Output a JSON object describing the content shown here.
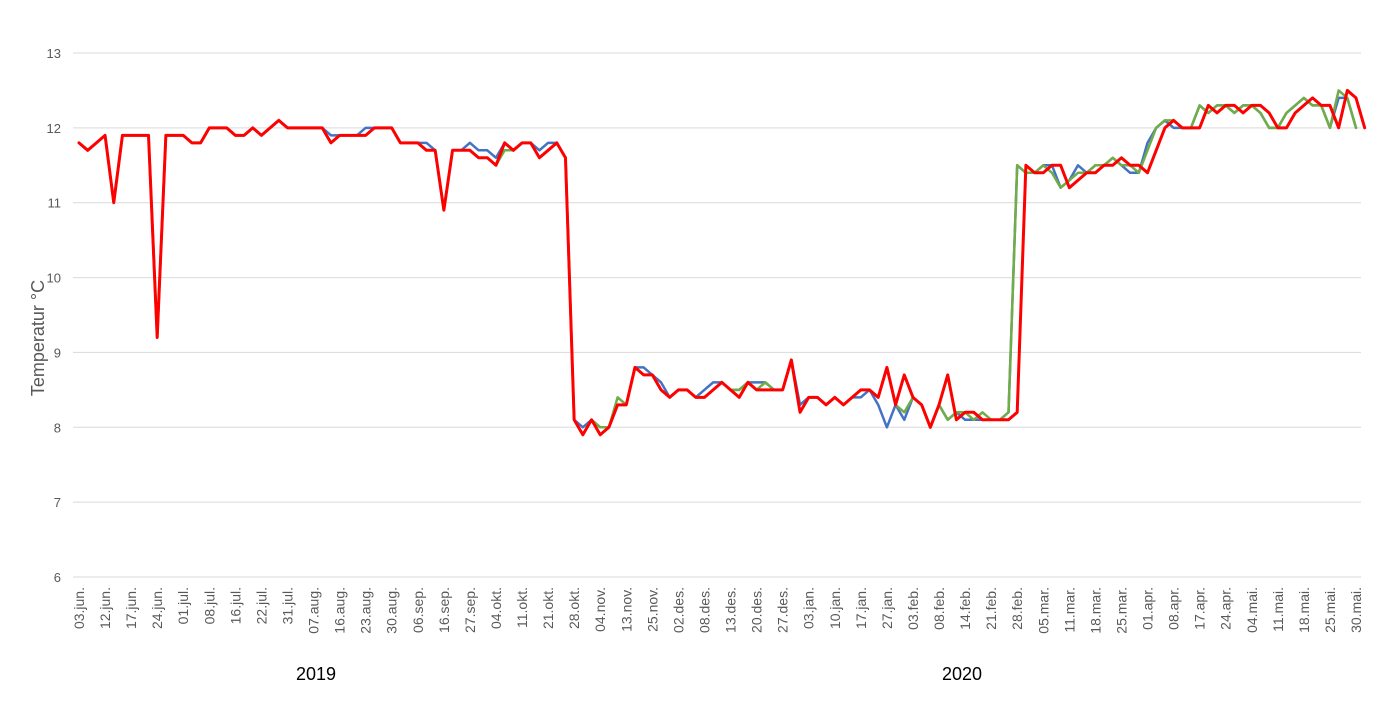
{
  "chart_data": {
    "type": "line",
    "ylabel": "Temperatur °C",
    "ylim": [
      6,
      13
    ],
    "yticks": [
      6,
      7,
      8,
      9,
      10,
      11,
      12,
      13
    ],
    "grid": "horizontal",
    "legend": "none",
    "x_tick_labels": [
      "03.jun.",
      "12.jun.",
      "17.jun.",
      "24.jun.",
      "01.jul.",
      "08.jul.",
      "16.jul.",
      "22.jul.",
      "31.jul.",
      "07.aug.",
      "16.aug.",
      "23.aug.",
      "30.aug.",
      "06.sep.",
      "16.sep.",
      "27.sep.",
      "04.okt.",
      "11.okt.",
      "21.okt.",
      "28.okt.",
      "04.nov.",
      "13.nov.",
      "25.nov.",
      "02.des.",
      "08.des.",
      "13.des.",
      "20.des.",
      "27.des.",
      "03.jan.",
      "10.jan.",
      "17.jan.",
      "27.jan.",
      "03.feb.",
      "08.feb.",
      "14.feb.",
      "21.feb.",
      "28.feb.",
      "05.mar.",
      "11.mar.",
      "18.mar.",
      "25.mar.",
      "01.apr.",
      "08.apr.",
      "17.apr.",
      "24.apr.",
      "04.mai.",
      "11.mai.",
      "18.mai.",
      "25.mai.",
      "30.mai."
    ],
    "tick_every": 3,
    "year_labels": [
      "2019",
      "2020"
    ],
    "series": [
      {
        "color": "#4472C4",
        "values": [
          11.8,
          11.7,
          11.8,
          11.9,
          11.0,
          11.9,
          11.9,
          11.9,
          11.9,
          9.2,
          11.9,
          11.9,
          11.9,
          11.8,
          11.8,
          12.0,
          12.0,
          12.0,
          11.9,
          11.9,
          12.0,
          11.9,
          12.0,
          12.1,
          12.0,
          12.0,
          12.0,
          12.0,
          12.0,
          11.9,
          11.9,
          11.9,
          11.9,
          12.0,
          12.0,
          12.0,
          12.0,
          11.8,
          11.8,
          11.8,
          11.8,
          11.7,
          10.9,
          11.7,
          11.7,
          11.8,
          11.7,
          11.7,
          11.6,
          11.8,
          11.7,
          11.8,
          11.8,
          11.7,
          11.8,
          11.8,
          11.6,
          8.1,
          8.0,
          8.1,
          8.0,
          8.0,
          8.3,
          8.3,
          8.8,
          8.8,
          8.7,
          8.6,
          8.4,
          8.5,
          8.5,
          8.4,
          8.5,
          8.6,
          8.6,
          8.5,
          8.5,
          8.6,
          8.6,
          8.6,
          8.5,
          8.5,
          8.9,
          8.3,
          8.4,
          8.4,
          8.3,
          8.4,
          8.3,
          8.4,
          8.4,
          8.5,
          8.3,
          8.0,
          8.3,
          8.1,
          8.4,
          8.3,
          8.0,
          8.3,
          8.1,
          8.2,
          8.1,
          8.1,
          8.1,
          8.1,
          8.1,
          8.2,
          11.5,
          11.4,
          11.4,
          11.5,
          11.5,
          11.2,
          11.3,
          11.5,
          11.4,
          11.5,
          11.5,
          11.6,
          11.5,
          11.4,
          11.4,
          11.8,
          12.0,
          12.1,
          12.0,
          12.0,
          12.0,
          12.3,
          12.2,
          12.3,
          12.3,
          12.2,
          12.3,
          12.3,
          12.2,
          12.0,
          12.0,
          12.2,
          12.3,
          12.4,
          12.3,
          12.3,
          12.0,
          12.4,
          12.4,
          12.0
        ]
      },
      {
        "color": "#70AD47",
        "values": [
          11.8,
          11.7,
          11.8,
          11.9,
          11.0,
          11.9,
          11.9,
          11.9,
          11.9,
          9.2,
          11.9,
          11.9,
          11.9,
          11.8,
          11.8,
          12.0,
          12.0,
          12.0,
          11.9,
          11.9,
          12.0,
          11.9,
          12.0,
          12.1,
          12.0,
          12.0,
          12.0,
          12.0,
          12.0,
          11.8,
          11.9,
          11.9,
          11.9,
          11.9,
          12.0,
          12.0,
          12.0,
          11.8,
          11.8,
          11.8,
          11.7,
          11.7,
          10.9,
          11.7,
          11.7,
          11.7,
          11.6,
          11.6,
          11.5,
          11.7,
          11.7,
          11.8,
          11.8,
          11.6,
          11.7,
          11.8,
          11.6,
          8.1,
          7.9,
          8.1,
          8.0,
          8.0,
          8.4,
          8.3,
          8.8,
          8.7,
          8.7,
          8.5,
          8.4,
          8.5,
          8.5,
          8.4,
          8.4,
          8.5,
          8.6,
          8.5,
          8.5,
          8.6,
          8.5,
          8.6,
          8.5,
          8.5,
          8.9,
          8.2,
          8.4,
          8.4,
          8.3,
          8.4,
          8.3,
          8.4,
          8.5,
          8.5,
          8.4,
          8.8,
          8.3,
          8.2,
          8.4,
          8.3,
          8.0,
          8.3,
          8.1,
          8.2,
          8.2,
          8.1,
          8.2,
          8.1,
          8.1,
          8.2,
          11.5,
          11.4,
          11.4,
          11.5,
          11.4,
          11.2,
          11.3,
          11.4,
          11.4,
          11.5,
          11.5,
          11.6,
          11.5,
          11.5,
          11.4,
          11.7,
          12.0,
          12.1,
          12.1,
          12.0,
          12.0,
          12.3,
          12.2,
          12.3,
          12.3,
          12.2,
          12.3,
          12.3,
          12.2,
          12.0,
          12.0,
          12.2,
          12.3,
          12.4,
          12.3,
          12.3,
          12.0,
          12.5,
          12.4,
          12.0
        ]
      },
      {
        "color": "#FF0000",
        "values": [
          11.8,
          11.7,
          11.8,
          11.9,
          11.0,
          11.9,
          11.9,
          11.9,
          11.9,
          9.2,
          11.9,
          11.9,
          11.9,
          11.8,
          11.8,
          12.0,
          12.0,
          12.0,
          11.9,
          11.9,
          12.0,
          11.9,
          12.0,
          12.1,
          12.0,
          12.0,
          12.0,
          12.0,
          12.0,
          11.8,
          11.9,
          11.9,
          11.9,
          11.9,
          12.0,
          12.0,
          12.0,
          11.8,
          11.8,
          11.8,
          11.7,
          11.7,
          10.9,
          11.7,
          11.7,
          11.7,
          11.6,
          11.6,
          11.5,
          11.8,
          11.7,
          11.8,
          11.8,
          11.6,
          11.7,
          11.8,
          11.6,
          8.1,
          7.9,
          8.1,
          7.9,
          8.0,
          8.3,
          8.3,
          8.8,
          8.7,
          8.7,
          8.5,
          8.4,
          8.5,
          8.5,
          8.4,
          8.4,
          8.5,
          8.6,
          8.5,
          8.4,
          8.6,
          8.5,
          8.5,
          8.5,
          8.5,
          8.9,
          8.2,
          8.4,
          8.4,
          8.3,
          8.4,
          8.3,
          8.4,
          8.5,
          8.5,
          8.4,
          8.8,
          8.3,
          8.7,
          8.4,
          8.3,
          8.0,
          8.3,
          8.7,
          8.1,
          8.2,
          8.2,
          8.1,
          8.1,
          8.1,
          8.1,
          8.2,
          11.5,
          11.4,
          11.4,
          11.5,
          11.5,
          11.2,
          11.3,
          11.4,
          11.4,
          11.5,
          11.5,
          11.6,
          11.5,
          11.5,
          11.4,
          11.7,
          12.0,
          12.1,
          12.0,
          12.0,
          12.0,
          12.3,
          12.2,
          12.3,
          12.3,
          12.2,
          12.3,
          12.3,
          12.2,
          12.0,
          12.0,
          12.2,
          12.3,
          12.4,
          12.3,
          12.3,
          12.0,
          12.5,
          12.4,
          12.0
        ]
      }
    ]
  }
}
